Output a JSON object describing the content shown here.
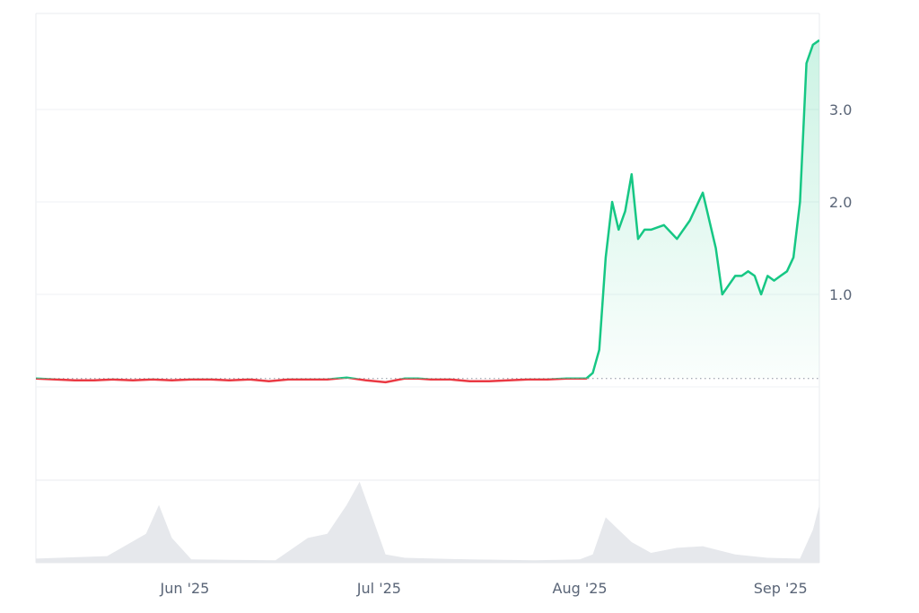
{
  "chart_data": {
    "type": "line",
    "title": "",
    "xlabel": "",
    "ylabel": "",
    "x_range": [
      "2025-05-09",
      "2025-09-07"
    ],
    "ylim": [
      0,
      4.0
    ],
    "baseline": 0.09,
    "grid": true,
    "y_ticks": [
      {
        "value": 1.0,
        "label": "1.0"
      },
      {
        "value": 2.0,
        "label": "2.0"
      },
      {
        "value": 3.0,
        "label": "3.0"
      }
    ],
    "x_ticks": [
      {
        "date": "2025-06-01",
        "label": "Jun '25"
      },
      {
        "date": "2025-07-01",
        "label": "Jul '25"
      },
      {
        "date": "2025-08-01",
        "label": "Aug '25"
      },
      {
        "date": "2025-09-01",
        "label": "Sep '25"
      }
    ],
    "colors": {
      "up": "#16c784",
      "down": "#ea3943",
      "fill": "#16c784",
      "volume": "#e6e8ec",
      "grid": "#eff2f5"
    },
    "series": [
      {
        "x": [
          "2025-05-09",
          "2025-05-12",
          "2025-05-15",
          "2025-05-18",
          "2025-05-21",
          "2025-05-24",
          "2025-05-27",
          "2025-05-30",
          "2025-06-02",
          "2025-06-05",
          "2025-06-08",
          "2025-06-11",
          "2025-06-14",
          "2025-06-17",
          "2025-06-20",
          "2025-06-23",
          "2025-06-26",
          "2025-06-29",
          "2025-07-02",
          "2025-07-05",
          "2025-07-07",
          "2025-07-09",
          "2025-07-12",
          "2025-07-15",
          "2025-07-18",
          "2025-07-21",
          "2025-07-24",
          "2025-07-27",
          "2025-07-30",
          "2025-08-02",
          "2025-08-03",
          "2025-08-04",
          "2025-08-05",
          "2025-08-06",
          "2025-08-07",
          "2025-08-08",
          "2025-08-09",
          "2025-08-10",
          "2025-08-11",
          "2025-08-12",
          "2025-08-14",
          "2025-08-16",
          "2025-08-18",
          "2025-08-20",
          "2025-08-22",
          "2025-08-23",
          "2025-08-24",
          "2025-08-25",
          "2025-08-26",
          "2025-08-27",
          "2025-08-28",
          "2025-08-29",
          "2025-08-30",
          "2025-08-31",
          "2025-09-01",
          "2025-09-02",
          "2025-09-03",
          "2025-09-04",
          "2025-09-05",
          "2025-09-06",
          "2025-09-07"
        ],
        "y": [
          0.09,
          0.08,
          0.07,
          0.07,
          0.08,
          0.07,
          0.08,
          0.07,
          0.08,
          0.08,
          0.07,
          0.08,
          0.06,
          0.08,
          0.08,
          0.08,
          0.1,
          0.07,
          0.05,
          0.09,
          0.09,
          0.08,
          0.08,
          0.06,
          0.06,
          0.07,
          0.08,
          0.08,
          0.09,
          0.09,
          0.15,
          0.4,
          1.4,
          2.0,
          1.7,
          1.9,
          2.3,
          1.6,
          1.7,
          1.7,
          1.75,
          1.6,
          1.8,
          2.1,
          1.5,
          1.0,
          1.1,
          1.2,
          1.2,
          1.25,
          1.2,
          1.0,
          1.2,
          1.15,
          1.2,
          1.25,
          1.4,
          2.0,
          3.5,
          3.7,
          3.75
        ]
      }
    ],
    "volume": {
      "x": [
        "2025-05-09",
        "2025-05-20",
        "2025-05-26",
        "2025-05-28",
        "2025-05-30",
        "2025-06-02",
        "2025-06-15",
        "2025-06-20",
        "2025-06-23",
        "2025-06-26",
        "2025-06-28",
        "2025-07-02",
        "2025-07-05",
        "2025-07-15",
        "2025-07-25",
        "2025-08-01",
        "2025-08-03",
        "2025-08-05",
        "2025-08-07",
        "2025-08-09",
        "2025-08-12",
        "2025-08-16",
        "2025-08-20",
        "2025-08-25",
        "2025-08-30",
        "2025-09-04",
        "2025-09-06",
        "2025-09-07"
      ],
      "y": [
        0.05,
        0.08,
        0.35,
        0.7,
        0.3,
        0.04,
        0.03,
        0.3,
        0.35,
        0.7,
        0.98,
        0.1,
        0.06,
        0.04,
        0.03,
        0.04,
        0.1,
        0.55,
        0.4,
        0.25,
        0.12,
        0.18,
        0.2,
        0.1,
        0.06,
        0.05,
        0.4,
        0.7
      ]
    }
  }
}
